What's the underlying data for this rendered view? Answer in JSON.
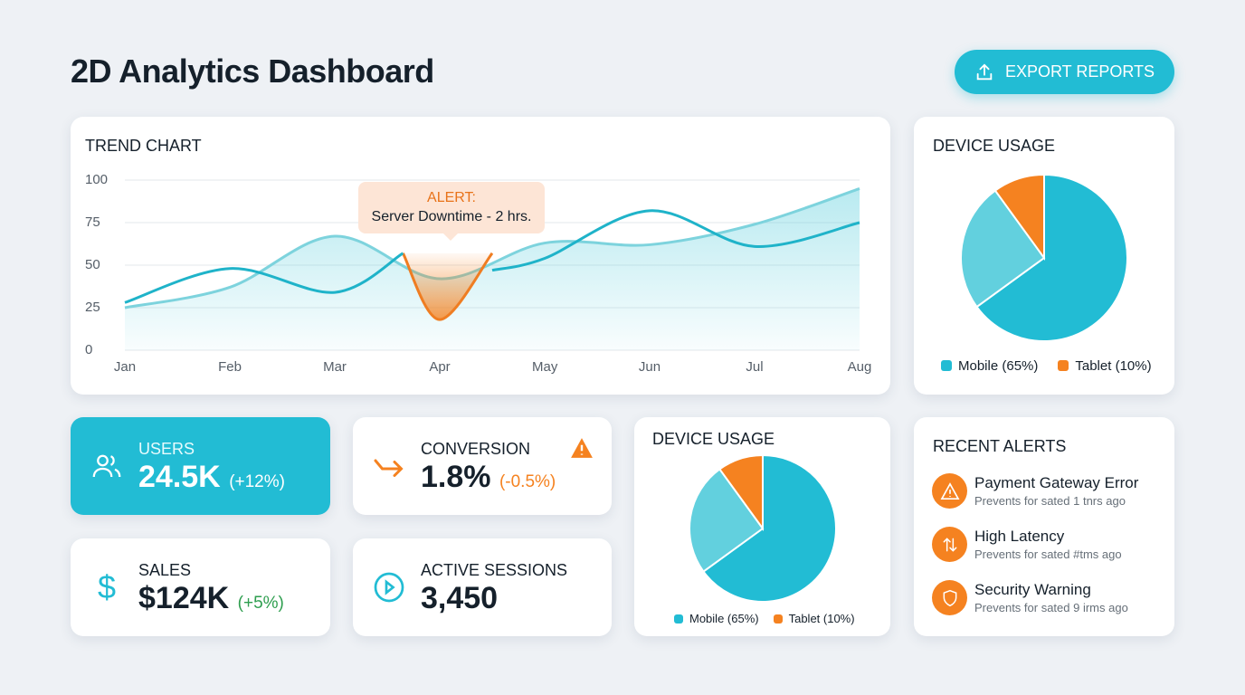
{
  "header": {
    "title": "2D Analytics Dashboard",
    "export_label": "EXPORT REPORTS",
    "export_icon": "upload-icon"
  },
  "colors": {
    "accent": "#22bcd4",
    "accent_light": "#62d0de",
    "warning": "#f58220",
    "positive": "#2e9e4f",
    "background": "#eef1f5"
  },
  "chart_data": [
    {
      "type": "line",
      "title": "TREND CHART",
      "categories": [
        "Jan",
        "Feb",
        "Mar",
        "Apr",
        "May",
        "Jun",
        "Jul",
        "Aug"
      ],
      "ylim": [
        0,
        100
      ],
      "yticks": [
        0,
        25,
        50,
        75,
        100
      ],
      "grid": true,
      "series": [
        {
          "style": "area",
          "x": [
            0,
            1,
            2,
            3,
            4,
            5,
            6,
            7
          ],
          "values": [
            25,
            37,
            67,
            42,
            63,
            62,
            74,
            95
          ]
        },
        {
          "style": "line",
          "x": [
            0,
            1,
            2,
            2.65,
            3.5,
            4,
            5,
            6,
            7
          ],
          "values": [
            28,
            48,
            34,
            57,
            47,
            54,
            82,
            61,
            75
          ]
        }
      ],
      "alert_segment": {
        "x": [
          2.65,
          3,
          3.5
        ],
        "values": [
          57,
          18,
          57
        ]
      },
      "annotation": {
        "title": "ALERT:",
        "text": "Server Downtime - 2 hrs."
      }
    },
    {
      "type": "pie",
      "title": "DEVICE USAGE",
      "slices": [
        {
          "label": "Mobile (65%)",
          "value": 65,
          "color": "#22bcd4"
        },
        {
          "label": "",
          "value": 25,
          "color": "#62d0de"
        },
        {
          "label": "Tablet (10%)",
          "value": 10,
          "color": "#f58220"
        }
      ]
    },
    {
      "type": "pie",
      "title": "DEVICE USAGE",
      "slices": [
        {
          "label": "Mobile (65%)",
          "value": 65,
          "color": "#22bcd4"
        },
        {
          "label": "",
          "value": 25,
          "color": "#62d0de"
        },
        {
          "label": "Tablet (10%)",
          "value": 10,
          "color": "#f58220"
        }
      ]
    }
  ],
  "kpis": [
    {
      "label": "USERS",
      "value": "24.5K",
      "change": "(+12%)",
      "icon": "users-icon"
    },
    {
      "label": "CONVERSION",
      "value": "1.8%",
      "change": "(-0.5%)",
      "icon": "trend-down-arrow-icon",
      "badge": "warning-icon"
    },
    {
      "label": "SALES",
      "value": "$124K",
      "change": "(+5%)",
      "icon": "dollar-icon"
    },
    {
      "label": "ACTIVE SESSIONS",
      "value": "3,450",
      "icon": "play-circle-icon"
    }
  ],
  "alerts": {
    "title": "RECENT ALERTS",
    "items": [
      {
        "title": "Payment Gateway Error",
        "subtitle": "Prevents for sated 1 tnrs ago",
        "icon": "warning-icon"
      },
      {
        "title": "High Latency",
        "subtitle": "Prevents for sated #tms ago",
        "icon": "arrows-up-down-icon"
      },
      {
        "title": "Security Warning",
        "subtitle": "Prevents for sated 9 irms ago",
        "icon": "shield-icon"
      }
    ]
  }
}
